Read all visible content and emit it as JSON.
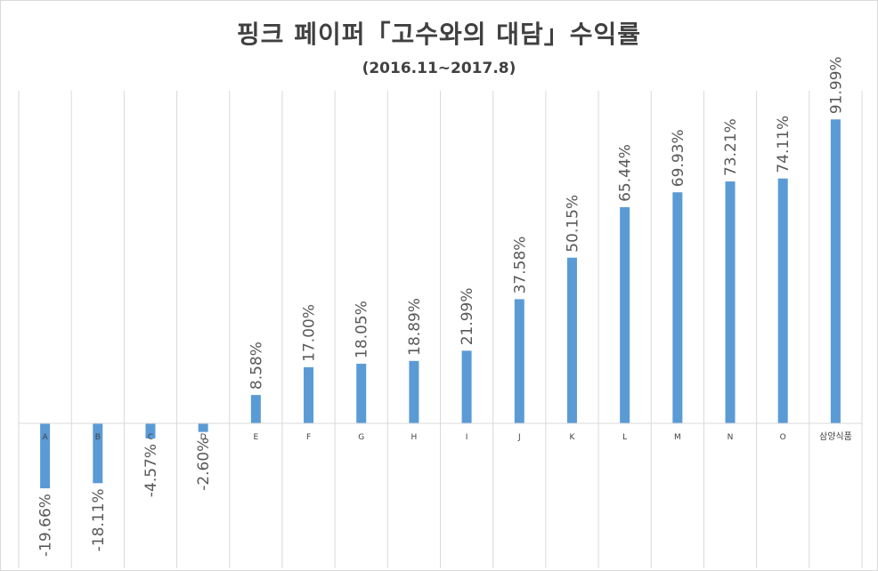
{
  "chart_data": {
    "type": "bar",
    "title": "핑크 페이퍼「고수와의 대담」수익률",
    "subtitle": "(2016.11~2017.8)",
    "categories": [
      "A",
      "B",
      "C",
      "D",
      "E",
      "F",
      "G",
      "H",
      "I",
      "J",
      "K",
      "L",
      "M",
      "N",
      "O",
      "삼양식품"
    ],
    "values": [
      -19.66,
      -18.11,
      -4.57,
      -2.6,
      8.58,
      17.0,
      18.05,
      18.89,
      21.99,
      37.58,
      50.15,
      65.44,
      69.93,
      73.21,
      74.11,
      91.99
    ],
    "data_labels": [
      "-19.66%",
      "-18.11%",
      "-4.57%",
      "-2.60%",
      "8.58%",
      "17.00%",
      "18.05%",
      "18.89%",
      "21.99%",
      "37.58%",
      "50.15%",
      "65.44%",
      "69.93%",
      "73.21%",
      "74.11%",
      "91.99%"
    ],
    "bar_color": "#5b9bd5",
    "label_color": "#595959",
    "grid": "vertical",
    "legend": "none",
    "ylim": [
      -40,
      100
    ]
  }
}
